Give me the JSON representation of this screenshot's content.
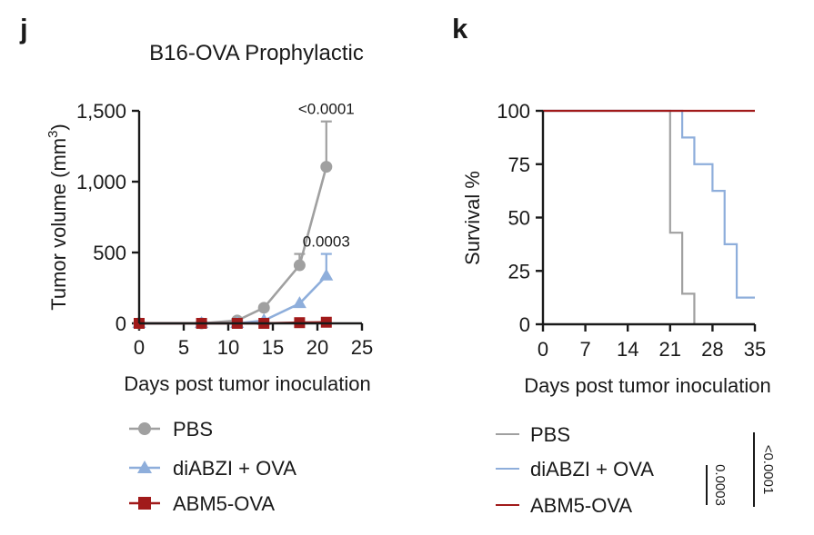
{
  "chart_data": [
    {
      "panel": "j",
      "type": "line",
      "title": "B16-OVA Prophylactic",
      "xlabel": "Days post tumor inoculation",
      "ylabel": "Tumor volume (mm",
      "ylabel_sup": "3",
      "ylabel_close": ")",
      "xlim": [
        0,
        25
      ],
      "ylim": [
        0,
        1500
      ],
      "xticks": [
        0,
        5,
        10,
        15,
        20,
        25
      ],
      "yticks": [
        0,
        500,
        1000,
        1500
      ],
      "yticklabels": [
        "0",
        "500",
        "1,000",
        "1,500"
      ],
      "series": [
        {
          "name": "PBS",
          "color": "#a0a0a0",
          "marker": "circle",
          "x": [
            0,
            7,
            11,
            14,
            18,
            21
          ],
          "y": [
            0,
            0,
            20,
            110,
            410,
            1105
          ],
          "err": [
            0,
            0,
            0,
            0,
            80,
            320
          ]
        },
        {
          "name": "diABZI + OVA",
          "color": "#8eaedb",
          "marker": "triangle",
          "x": [
            0,
            7,
            11,
            14,
            18,
            21
          ],
          "y": [
            0,
            0,
            0,
            20,
            140,
            335
          ],
          "err": [
            0,
            0,
            0,
            0,
            0,
            155
          ]
        },
        {
          "name": "ABM5-OVA",
          "color": "#a11a1a",
          "marker": "square",
          "x": [
            0,
            7,
            11,
            14,
            18,
            21
          ],
          "y": [
            0,
            0,
            0,
            0,
            5,
            8
          ],
          "err": [
            0,
            0,
            0,
            0,
            0,
            0
          ]
        }
      ],
      "annotations": [
        {
          "text": "<0.0001",
          "series": "PBS",
          "x": 21,
          "y": 1425
        },
        {
          "text": "0.0003",
          "series": "diABZI + OVA",
          "x": 21,
          "y": 490
        }
      ]
    },
    {
      "panel": "k",
      "type": "line",
      "subtype": "step survival",
      "xlabel": "Days post tumor inoculation",
      "ylabel": "Survival %",
      "xlim": [
        0,
        35
      ],
      "ylim": [
        0,
        100
      ],
      "xticks": [
        0,
        7,
        14,
        21,
        28,
        35
      ],
      "yticks": [
        0,
        25,
        50,
        75,
        100
      ],
      "series": [
        {
          "name": "PBS",
          "color": "#a0a0a0",
          "x": [
            0,
            21,
            23,
            25
          ],
          "y": [
            100,
            42.9,
            14.3,
            0
          ]
        },
        {
          "name": "diABZI + OVA",
          "color": "#8eaedb",
          "x": [
            0,
            23,
            25,
            28,
            30,
            32,
            35
          ],
          "y": [
            100,
            87.5,
            75,
            62.5,
            37.5,
            12.5,
            12.5
          ]
        },
        {
          "name": "ABM5-OVA",
          "color": "#a11a1a",
          "x": [
            0,
            35
          ],
          "y": [
            100,
            100
          ]
        }
      ],
      "significance": [
        {
          "text": "0.0003",
          "from": "diABZI + OVA",
          "to": "ABM5-OVA"
        },
        {
          "text": "<0.0001",
          "from": "PBS",
          "to": "ABM5-OVA"
        }
      ]
    }
  ]
}
